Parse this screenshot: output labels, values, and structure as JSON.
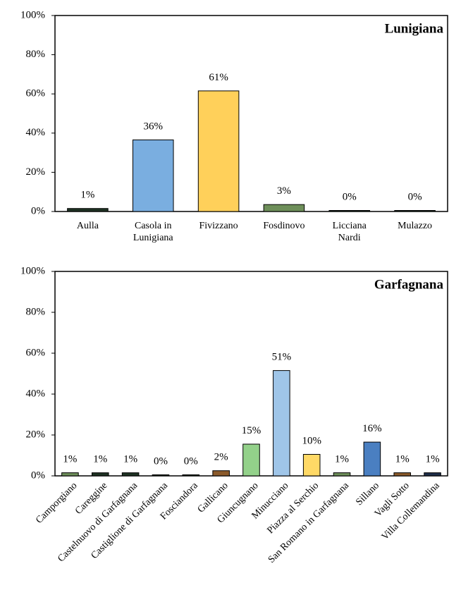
{
  "chart_data": [
    {
      "type": "bar",
      "title": "Lunigiana",
      "categories": [
        "Aulla",
        "Casola in Lunigiana",
        "Fivizzano",
        "Fosdinovo",
        "Licciana Nardi",
        "Mulazzo"
      ],
      "values": [
        1,
        36,
        61,
        3,
        0,
        0
      ],
      "value_labels": [
        "1%",
        "36%",
        "61%",
        "3%",
        "0%",
        "0%"
      ],
      "colors": [
        "#1f3324",
        "#7aaee0",
        "#ffd05a",
        "#6e8f5a",
        "#1f3324",
        "#1f3324"
      ],
      "ylim": [
        0,
        100
      ],
      "yticks": [
        {
          "value": 0,
          "label": "0%"
        },
        {
          "value": 20,
          "label": "20%"
        },
        {
          "value": 40,
          "label": "40%"
        },
        {
          "value": 60,
          "label": "60%"
        },
        {
          "value": 80,
          "label": "80%"
        },
        {
          "value": 100,
          "label": "100%"
        }
      ]
    },
    {
      "type": "bar",
      "title": "Garfagnana",
      "categories": [
        "Camporgiano",
        "Careggine",
        "Castelnuovo di Garfagnana",
        "Castiglione di Garfagnana",
        "Fosciandora",
        "Gallicano",
        "Giuncugnano",
        "Minucciano",
        "Piazza al Serchio",
        "San Romano in Garfagnana",
        "Sillano",
        "Vagli Sotto",
        "Villa Collemandina"
      ],
      "values": [
        1,
        1,
        1,
        0,
        0,
        2,
        15,
        51,
        10,
        1,
        16,
        1,
        1
      ],
      "value_labels": [
        "1%",
        "1%",
        "1%",
        "0%",
        "0%",
        "2%",
        "15%",
        "51%",
        "10%",
        "1%",
        "16%",
        "1%",
        "1%"
      ],
      "colors": [
        "#6e8f5a",
        "#1f3324",
        "#1f3324",
        "#1f3324",
        "#1f3324",
        "#8b5a2b",
        "#93d18a",
        "#9fc5e8",
        "#ffd966",
        "#6e8f5a",
        "#4a7fc1",
        "#8b5a2b",
        "#1f2f4a"
      ],
      "ylim": [
        0,
        100
      ],
      "yticks": [
        {
          "value": 0,
          "label": "0%"
        },
        {
          "value": 20,
          "label": "20%"
        },
        {
          "value": 40,
          "label": "40%"
        },
        {
          "value": 60,
          "label": "60%"
        },
        {
          "value": 80,
          "label": "80%"
        },
        {
          "value": 100,
          "label": "100%"
        }
      ]
    }
  ]
}
